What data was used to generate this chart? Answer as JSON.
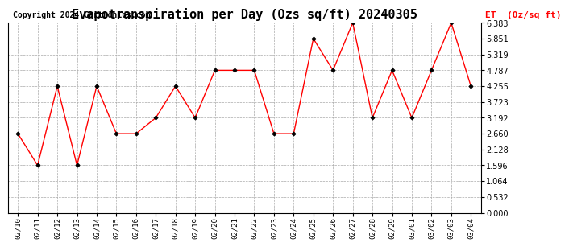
{
  "title": "Evapotranspiration per Day (Ozs sq/ft) 20240305",
  "copyright": "Copyright 2024 Cartronics.com",
  "legend_label": "ET  (0z/sq ft)",
  "x_labels": [
    "02/10",
    "02/11",
    "02/12",
    "02/13",
    "02/14",
    "02/15",
    "02/16",
    "02/17",
    "02/18",
    "02/19",
    "02/20",
    "02/21",
    "02/22",
    "02/23",
    "02/24",
    "02/25",
    "02/26",
    "02/27",
    "02/28",
    "02/29",
    "03/01",
    "03/02",
    "03/03",
    "03/04"
  ],
  "y_values": [
    2.66,
    1.596,
    4.255,
    1.596,
    4.255,
    2.66,
    2.66,
    3.192,
    4.255,
    3.192,
    4.787,
    4.787,
    4.787,
    2.66,
    2.66,
    5.851,
    4.787,
    6.383,
    3.192,
    4.787,
    3.192,
    4.787,
    6.383,
    4.255
  ],
  "ylim": [
    0.0,
    6.383
  ],
  "yticks": [
    0.0,
    0.532,
    1.064,
    1.596,
    2.128,
    2.66,
    3.192,
    3.723,
    4.255,
    4.787,
    5.319,
    5.851,
    6.383
  ],
  "line_color": "red",
  "marker_color": "black",
  "marker": "D",
  "marker_size": 2.5,
  "title_fontsize": 11,
  "copyright_fontsize": 7,
  "legend_color": "red",
  "background_color": "#ffffff",
  "grid_color": "#aaaaaa",
  "tick_label_fontsize": 6.5,
  "ytick_label_fontsize": 7
}
